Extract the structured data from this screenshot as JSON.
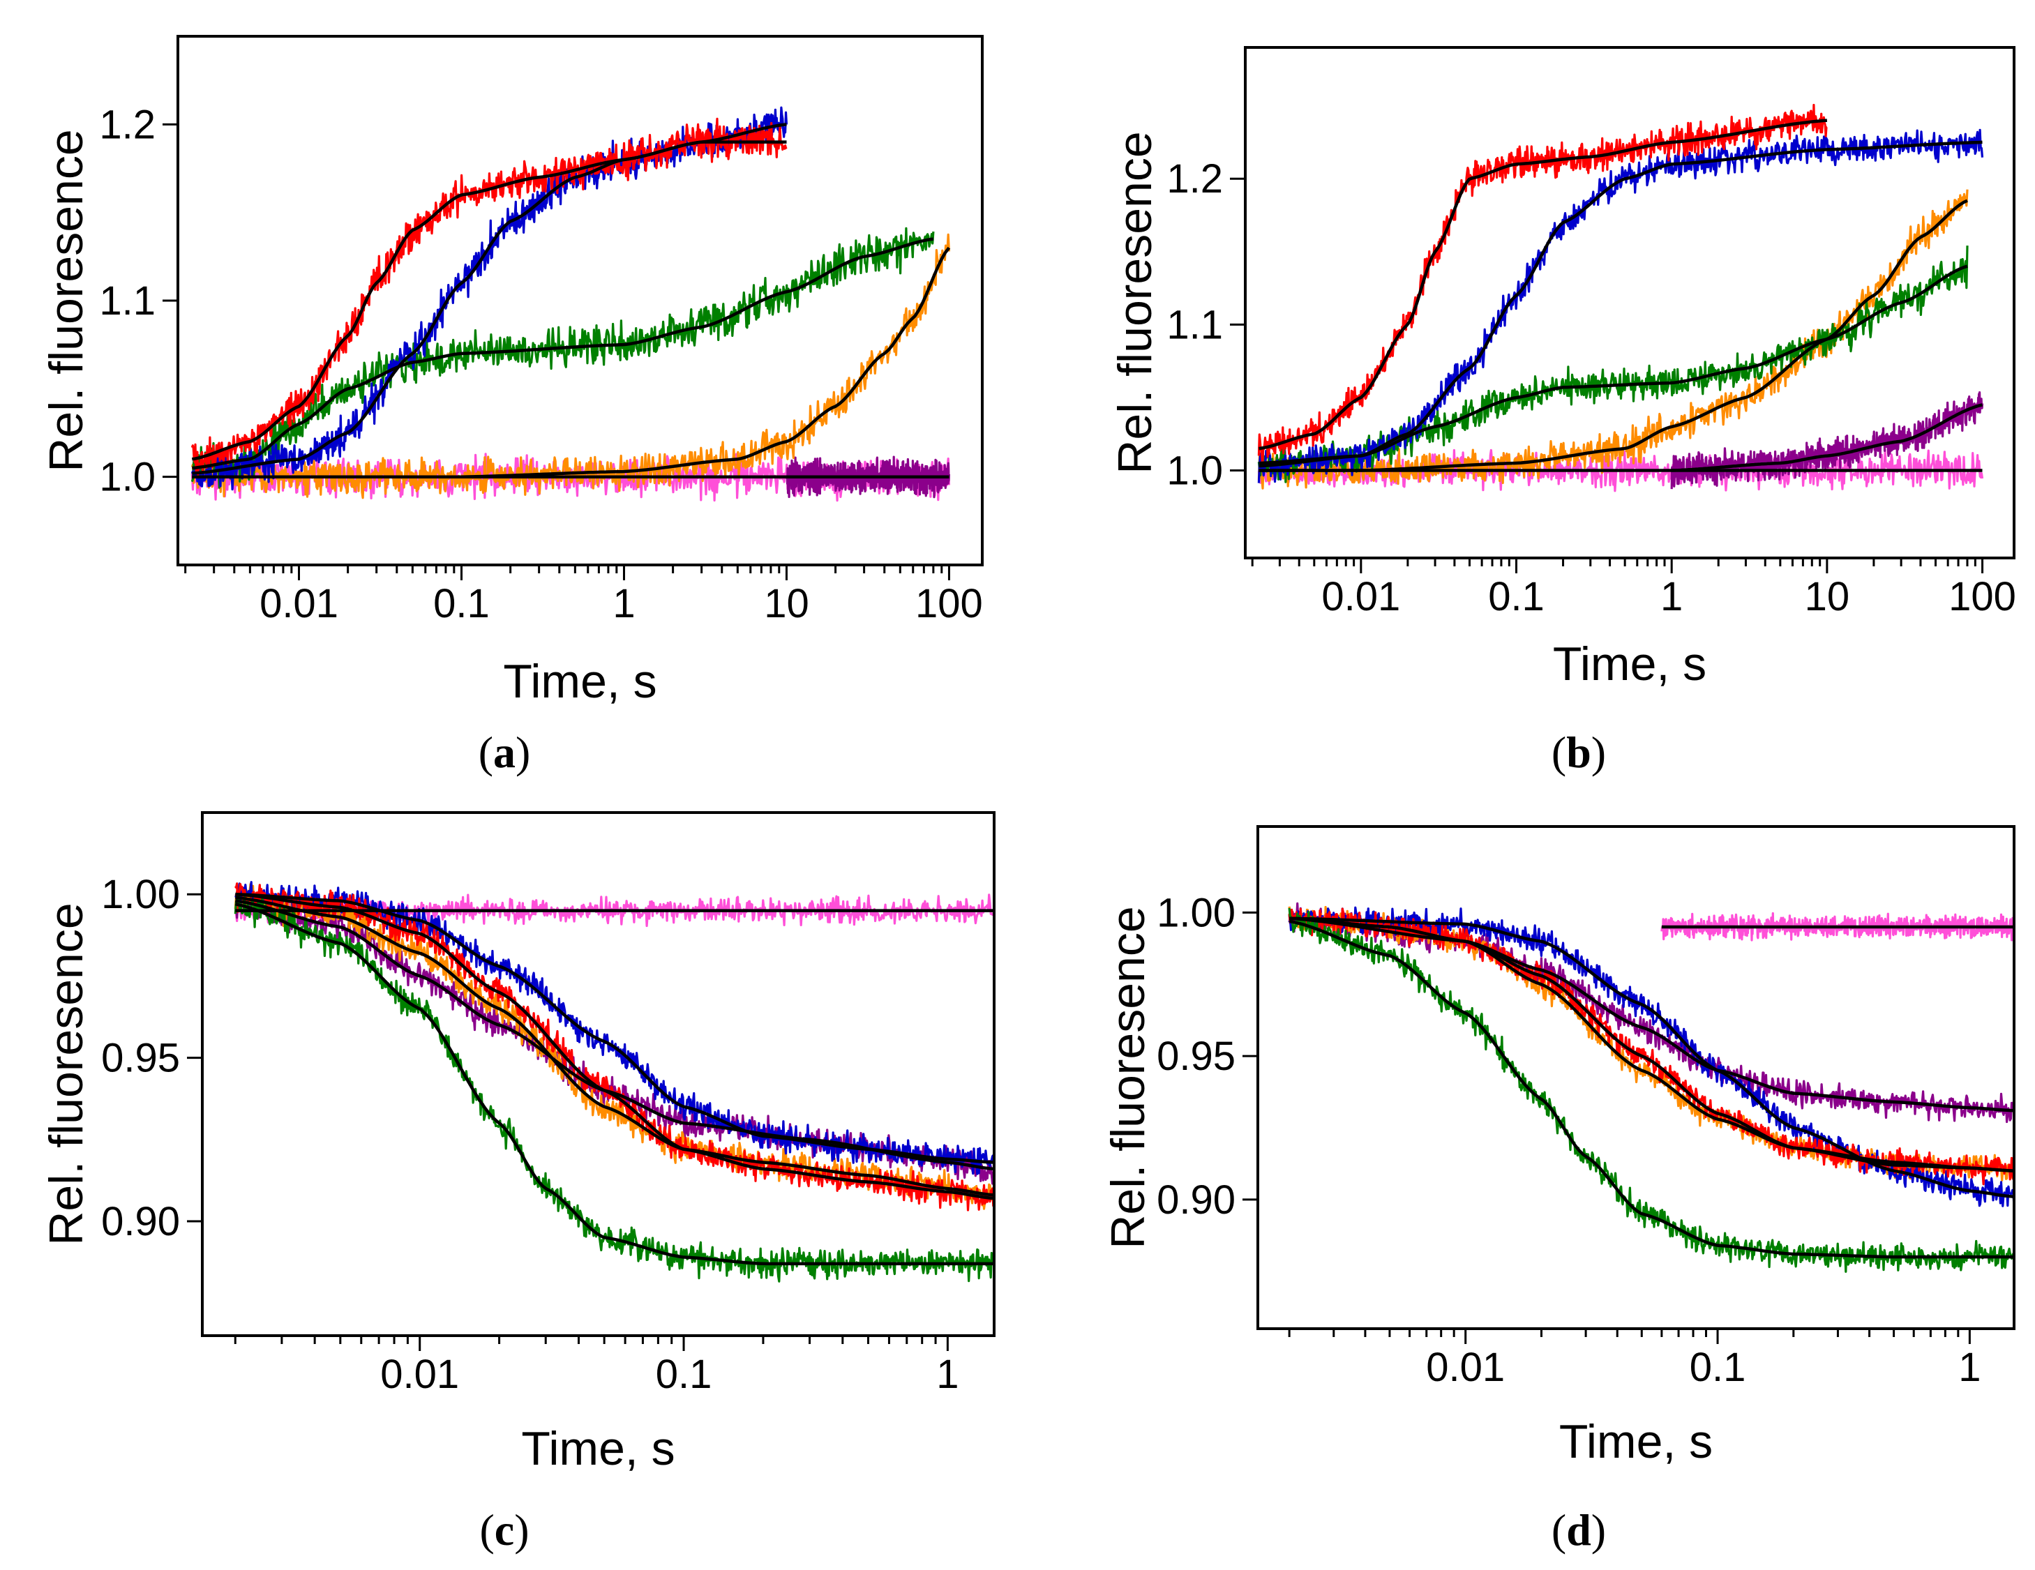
{
  "chart_data": [
    {
      "panel": "a",
      "type": "line",
      "xscale": "log",
      "xlim": [
        0.0018,
        160
      ],
      "ylim": [
        0.95,
        1.25
      ],
      "xticks": [
        0.01,
        0.1,
        1,
        10,
        100
      ],
      "xtick_labels": [
        "0.01",
        "0.1",
        "1",
        "10",
        "100"
      ],
      "yticks": [
        1.0,
        1.1,
        1.2
      ],
      "ytick_labels": [
        "1.0",
        "1.1",
        "1.2"
      ],
      "xlabel": "Time, s",
      "ylabel": "Rel. fluoresence",
      "caption_open": "(",
      "caption_letter": "a",
      "caption_close": ")",
      "series": [
        {
          "name": "magenta",
          "color": "#ff4fd8",
          "noise": 0.009,
          "t_start": 0.0022,
          "t_end": 100,
          "x": [
            0.0022,
            0.01,
            0.1,
            1,
            10,
            100
          ],
          "y": [
            1.0,
            1.0,
            1.0,
            1.0,
            1.0,
            1.0
          ]
        },
        {
          "name": "purple",
          "color": "#8b008b",
          "noise": 0.007,
          "t_start": 10,
          "t_end": 100,
          "x": [
            10,
            30,
            100
          ],
          "y": [
            1.0,
            1.0,
            1.0
          ]
        },
        {
          "name": "orange",
          "color": "#ff8c00",
          "noise": 0.008,
          "t_start": 0.0022,
          "t_end": 100,
          "x": [
            0.0022,
            0.1,
            1,
            5,
            10,
            20,
            40,
            60,
            100
          ],
          "y": [
            1.0,
            1.0,
            1.003,
            1.01,
            1.02,
            1.04,
            1.07,
            1.09,
            1.13
          ]
        },
        {
          "name": "green",
          "color": "#008000",
          "noise": 0.009,
          "t_start": 0.0022,
          "t_end": 80,
          "x": [
            0.0022,
            0.005,
            0.01,
            0.02,
            0.05,
            0.1,
            1,
            3,
            10,
            30,
            80
          ],
          "y": [
            1.005,
            1.01,
            1.03,
            1.05,
            1.065,
            1.07,
            1.075,
            1.085,
            1.105,
            1.125,
            1.135
          ]
        },
        {
          "name": "blue",
          "color": "#0000cd",
          "noise": 0.008,
          "t_start": 0.0022,
          "t_end": 10,
          "x": [
            0.0022,
            0.01,
            0.02,
            0.05,
            0.1,
            0.2,
            0.5,
            1,
            3,
            10
          ],
          "y": [
            1.002,
            1.01,
            1.025,
            1.07,
            1.11,
            1.145,
            1.17,
            1.18,
            1.19,
            1.2
          ]
        },
        {
          "name": "red",
          "color": "#ff0000",
          "noise": 0.008,
          "t_start": 0.0022,
          "t_end": 10,
          "x": [
            0.0022,
            0.005,
            0.01,
            0.02,
            0.03,
            0.05,
            0.1,
            0.3,
            1,
            3,
            10
          ],
          "y": [
            1.01,
            1.02,
            1.04,
            1.08,
            1.11,
            1.14,
            1.16,
            1.17,
            1.18,
            1.19,
            1.19
          ]
        }
      ]
    },
    {
      "panel": "b",
      "type": "line",
      "xscale": "log",
      "xlim": [
        0.0018,
        160
      ],
      "ylim": [
        0.94,
        1.29
      ],
      "xticks": [
        0.01,
        0.1,
        1,
        10,
        100
      ],
      "xtick_labels": [
        "0.01",
        "0.1",
        "1",
        "10",
        "100"
      ],
      "yticks": [
        1.0,
        1.1,
        1.2
      ],
      "ytick_labels": [
        "1.0",
        "1.1",
        "1.2"
      ],
      "xlabel": "Time, s",
      "ylabel": "Rel. fluoresence",
      "caption_open": "(",
      "caption_letter": "b",
      "caption_close": ")",
      "series": [
        {
          "name": "magenta",
          "color": "#ff4fd8",
          "noise": 0.009,
          "t_start": 0.0022,
          "t_end": 100,
          "x": [
            0.0022,
            0.01,
            0.1,
            1,
            10,
            100
          ],
          "y": [
            1.0,
            1.0,
            1.0,
            1.0,
            1.0,
            1.0
          ]
        },
        {
          "name": "purple",
          "color": "#8b008b",
          "noise": 0.008,
          "t_start": 1,
          "t_end": 100,
          "x": [
            1,
            5,
            10,
            30,
            100
          ],
          "y": [
            1.0,
            1.005,
            1.01,
            1.02,
            1.045
          ]
        },
        {
          "name": "orange",
          "color": "#ff8c00",
          "noise": 0.009,
          "t_start": 0.0022,
          "t_end": 80,
          "x": [
            0.0022,
            0.01,
            0.1,
            0.5,
            1,
            3,
            10,
            20,
            40,
            80
          ],
          "y": [
            1.0,
            1.0,
            1.005,
            1.015,
            1.03,
            1.05,
            1.09,
            1.12,
            1.16,
            1.185
          ]
        },
        {
          "name": "green",
          "color": "#008000",
          "noise": 0.009,
          "t_start": 0.0022,
          "t_end": 80,
          "x": [
            0.0022,
            0.01,
            0.03,
            0.1,
            0.2,
            1,
            3,
            10,
            30,
            80
          ],
          "y": [
            1.005,
            1.01,
            1.03,
            1.05,
            1.057,
            1.06,
            1.07,
            1.09,
            1.115,
            1.14
          ]
        },
        {
          "name": "blue",
          "color": "#0000cd",
          "noise": 0.008,
          "t_start": 0.0022,
          "t_end": 100,
          "x": [
            0.0022,
            0.01,
            0.02,
            0.05,
            0.1,
            0.2,
            0.5,
            1,
            10,
            100
          ],
          "y": [
            1.003,
            1.01,
            1.025,
            1.07,
            1.12,
            1.17,
            1.2,
            1.21,
            1.22,
            1.225
          ]
        },
        {
          "name": "red",
          "color": "#ff0000",
          "noise": 0.008,
          "t_start": 0.0022,
          "t_end": 10,
          "x": [
            0.0022,
            0.005,
            0.01,
            0.02,
            0.03,
            0.05,
            0.1,
            0.3,
            1,
            10
          ],
          "y": [
            1.015,
            1.025,
            1.05,
            1.1,
            1.15,
            1.2,
            1.21,
            1.215,
            1.225,
            1.24
          ]
        }
      ]
    },
    {
      "panel": "c",
      "type": "line",
      "xscale": "log",
      "xlim": [
        0.0015,
        1.5
      ],
      "ylim": [
        0.865,
        1.025
      ],
      "xticks": [
        0.01,
        0.1,
        1
      ],
      "xtick_labels": [
        "0.01",
        "0.1",
        "1"
      ],
      "yticks": [
        0.9,
        0.95,
        1.0
      ],
      "ytick_labels": [
        "0.90",
        "0.95",
        "1.00"
      ],
      "xlabel": "Time, s",
      "ylabel": "Rel. fluoresence",
      "caption_open": "(",
      "caption_letter": "c",
      "caption_close": ")",
      "series": [
        {
          "name": "magenta",
          "color": "#ff4fd8",
          "noise": 0.003,
          "t_start": 0.002,
          "t_end": 1.5,
          "x": [
            0.002,
            0.01,
            0.1,
            1,
            1.5
          ],
          "y": [
            0.995,
            0.995,
            0.995,
            0.995,
            0.995
          ]
        },
        {
          "name": "purple",
          "color": "#8b008b",
          "noise": 0.0035,
          "t_start": 0.002,
          "t_end": 1.5,
          "x": [
            0.002,
            0.005,
            0.01,
            0.02,
            0.05,
            0.1,
            0.3,
            1,
            1.5
          ],
          "y": [
            0.998,
            0.99,
            0.975,
            0.96,
            0.94,
            0.93,
            0.925,
            0.918,
            0.916
          ]
        },
        {
          "name": "orange",
          "color": "#ff8c00",
          "noise": 0.0035,
          "t_start": 0.002,
          "t_end": 1.5,
          "x": [
            0.002,
            0.005,
            0.01,
            0.02,
            0.05,
            0.1,
            0.2,
            0.5,
            1,
            1.5
          ],
          "y": [
            0.999,
            0.993,
            0.982,
            0.965,
            0.935,
            0.922,
            0.918,
            0.914,
            0.91,
            0.908
          ]
        },
        {
          "name": "blue",
          "color": "#0000cd",
          "noise": 0.0035,
          "t_start": 0.002,
          "t_end": 1.5,
          "x": [
            0.002,
            0.005,
            0.01,
            0.02,
            0.05,
            0.1,
            0.2,
            0.5,
            1,
            1.5
          ],
          "y": [
            1.0,
            0.998,
            0.992,
            0.978,
            0.955,
            0.935,
            0.926,
            0.922,
            0.919,
            0.918
          ]
        },
        {
          "name": "red",
          "color": "#ff0000",
          "noise": 0.0035,
          "t_start": 0.002,
          "t_end": 1.5,
          "x": [
            0.002,
            0.005,
            0.01,
            0.02,
            0.05,
            0.1,
            0.2,
            0.5,
            1,
            1.5
          ],
          "y": [
            1.0,
            0.996,
            0.988,
            0.97,
            0.94,
            0.922,
            0.916,
            0.912,
            0.909,
            0.907
          ]
        },
        {
          "name": "green",
          "color": "#008000",
          "noise": 0.0035,
          "t_start": 0.002,
          "t_end": 1.5,
          "x": [
            0.002,
            0.005,
            0.01,
            0.02,
            0.03,
            0.05,
            0.1,
            0.2,
            0.5,
            1.5
          ],
          "y": [
            0.997,
            0.985,
            0.965,
            0.93,
            0.91,
            0.895,
            0.889,
            0.887,
            0.887,
            0.887
          ]
        }
      ]
    },
    {
      "panel": "d",
      "type": "line",
      "xscale": "log",
      "xlim": [
        0.0015,
        1.5
      ],
      "ylim": [
        0.855,
        1.03
      ],
      "xticks": [
        0.01,
        0.1,
        1
      ],
      "xtick_labels": [
        "0.01",
        "0.1",
        "1"
      ],
      "yticks": [
        0.9,
        0.95,
        1.0
      ],
      "ytick_labels": [
        "0.90",
        "0.95",
        "1.00"
      ],
      "xlabel": "Time, s",
      "ylabel": "Rel. fluoresence",
      "caption_open": "(",
      "caption_letter": "d",
      "caption_close": ")",
      "series": [
        {
          "name": "magenta",
          "color": "#ff4fd8",
          "noise": 0.003,
          "t_start": 0.06,
          "t_end": 1.5,
          "x": [
            0.06,
            0.1,
            1,
            1.5
          ],
          "y": [
            0.995,
            0.995,
            0.995,
            0.995
          ]
        },
        {
          "name": "purple",
          "color": "#8b008b",
          "noise": 0.0035,
          "t_start": 0.002,
          "t_end": 1.5,
          "x": [
            0.002,
            0.01,
            0.02,
            0.05,
            0.1,
            0.2,
            0.5,
            1,
            1.5
          ],
          "y": [
            0.998,
            0.99,
            0.98,
            0.96,
            0.945,
            0.937,
            0.934,
            0.932,
            0.931
          ]
        },
        {
          "name": "orange",
          "color": "#ff8c00",
          "noise": 0.0035,
          "t_start": 0.002,
          "t_end": 1.5,
          "x": [
            0.002,
            0.005,
            0.01,
            0.02,
            0.05,
            0.1,
            0.2,
            0.5,
            1,
            1.5
          ],
          "y": [
            0.998,
            0.995,
            0.99,
            0.975,
            0.945,
            0.928,
            0.918,
            0.912,
            0.911,
            0.91
          ]
        },
        {
          "name": "blue",
          "color": "#0000cd",
          "noise": 0.0035,
          "t_start": 0.002,
          "t_end": 1.5,
          "x": [
            0.002,
            0.01,
            0.02,
            0.05,
            0.1,
            0.2,
            0.5,
            1,
            1.5
          ],
          "y": [
            0.998,
            0.996,
            0.99,
            0.968,
            0.945,
            0.925,
            0.91,
            0.903,
            0.901
          ]
        },
        {
          "name": "red",
          "color": "#ff0000",
          "noise": 0.0035,
          "t_start": 0.002,
          "t_end": 1.5,
          "x": [
            0.002,
            0.005,
            0.01,
            0.02,
            0.05,
            0.1,
            0.2,
            0.5,
            1,
            1.5
          ],
          "y": [
            0.998,
            0.995,
            0.99,
            0.978,
            0.95,
            0.93,
            0.918,
            0.913,
            0.911,
            0.91
          ]
        },
        {
          "name": "green",
          "color": "#008000",
          "noise": 0.0035,
          "t_start": 0.002,
          "t_end": 1.5,
          "x": [
            0.002,
            0.005,
            0.01,
            0.02,
            0.03,
            0.05,
            0.1,
            0.2,
            0.5,
            1.5
          ],
          "y": [
            0.997,
            0.985,
            0.965,
            0.935,
            0.915,
            0.895,
            0.884,
            0.881,
            0.88,
            0.88
          ]
        }
      ]
    }
  ]
}
